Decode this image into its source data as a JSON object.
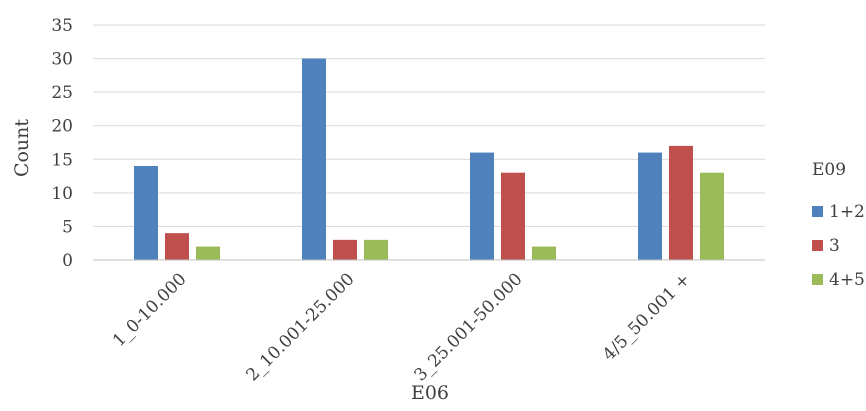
{
  "chart_data": {
    "type": "bar",
    "xlabel": "E06",
    "ylabel": "Count",
    "ylim": [
      0,
      35
    ],
    "y_ticks": [
      0,
      5,
      10,
      15,
      20,
      25,
      30,
      35
    ],
    "grid": true,
    "legend_position": "right",
    "legend_title": "E09",
    "categories": [
      "1_0-10.000",
      "2_10.001-25.000",
      "3_25.001-50.000",
      "4/5_50.001 +"
    ],
    "series": [
      {
        "name": "1+2",
        "color": "#4F81BD",
        "values": [
          14,
          30,
          16,
          16
        ]
      },
      {
        "name": "3",
        "color": "#C0504D",
        "values": [
          4,
          3,
          13,
          17
        ]
      },
      {
        "name": "4+5",
        "color": "#9BBB59",
        "values": [
          2,
          3,
          2,
          13
        ]
      }
    ]
  }
}
